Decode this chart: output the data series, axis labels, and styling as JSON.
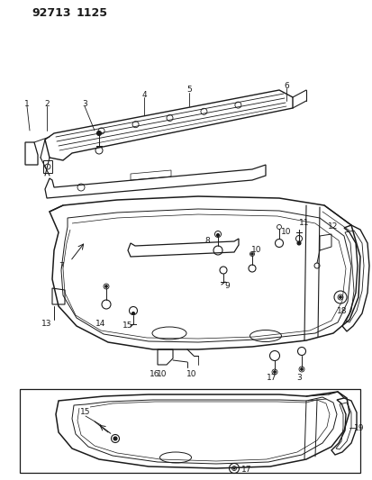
{
  "title1": "92713",
  "title2": "1125",
  "bg": "#ffffff",
  "lc": "#1a1a1a",
  "fig_w": 4.14,
  "fig_h": 5.33,
  "dpi": 100
}
